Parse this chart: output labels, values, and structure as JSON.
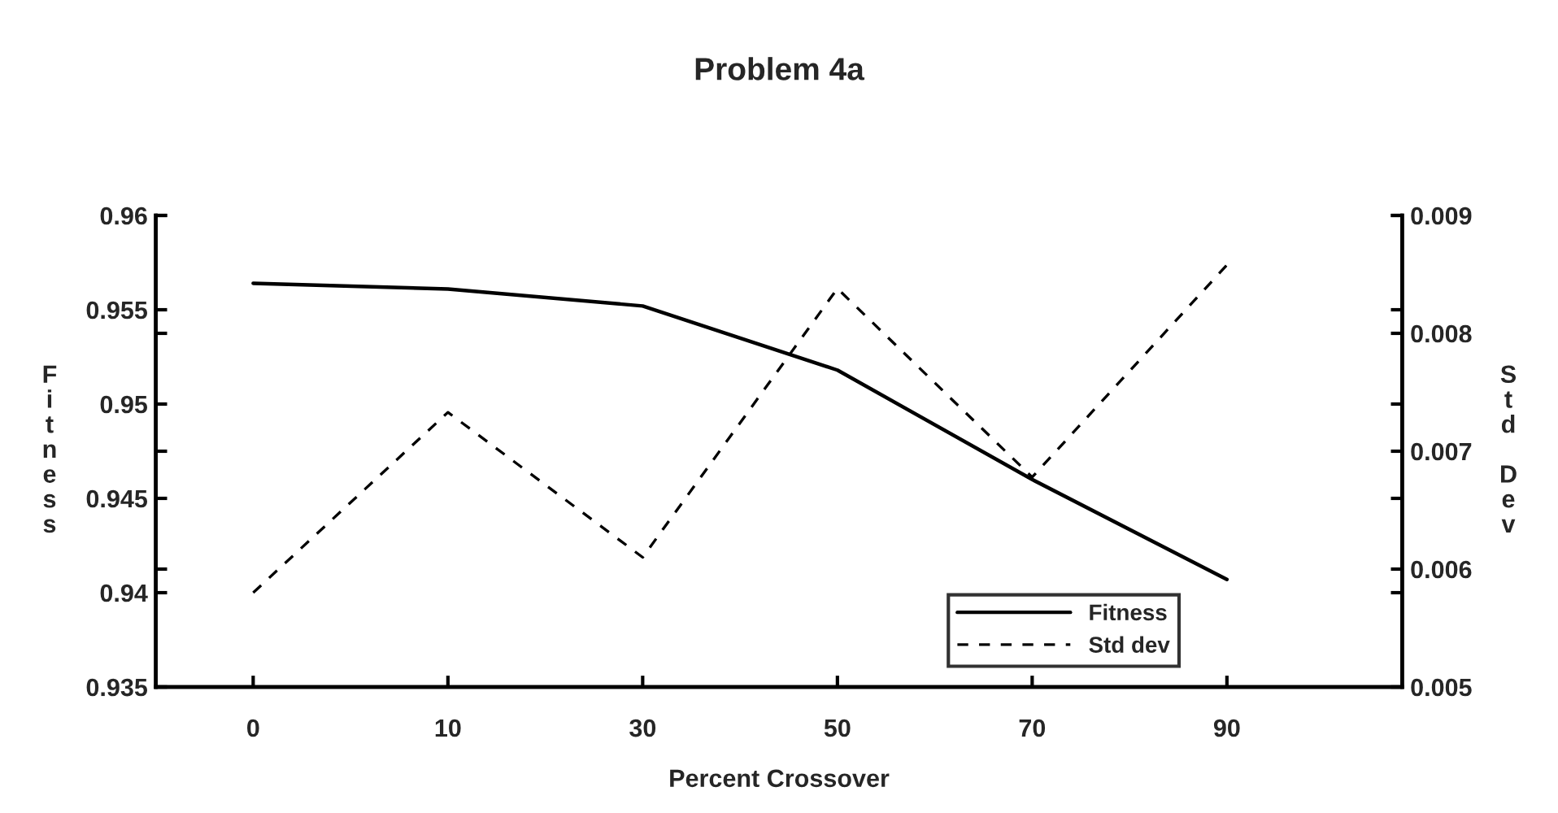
{
  "chart_data": {
    "type": "line",
    "title": "Problem 4a",
    "xlabel": "Percent Crossover",
    "ylabel": "Fitness",
    "y2label": "Std Dev",
    "categories": [
      "0",
      "10",
      "30",
      "50",
      "70",
      "90"
    ],
    "series": [
      {
        "name": "Fitness",
        "color": "#000000",
        "line_style": "solid",
        "values": [
          0.9564,
          0.9561,
          0.9552,
          0.9518,
          0.946,
          0.9407
        ]
      },
      {
        "name": "Std dev",
        "color": "#000000",
        "line_style": "dashed",
        "axis": "y2",
        "values": [
          0.0058,
          0.00733,
          0.0061,
          0.00838,
          0.00678,
          0.00858
        ]
      }
    ],
    "ylim": [
      0.935,
      0.96
    ],
    "yticks": [
      0.935,
      0.94,
      0.945,
      0.95,
      0.955,
      0.96
    ],
    "y2lim": [
      0.005,
      0.009
    ],
    "y2ticks": [
      0.005,
      0.006,
      0.007,
      0.008,
      0.009
    ],
    "legend": "bottom right",
    "grid": false,
    "marker": "none"
  }
}
